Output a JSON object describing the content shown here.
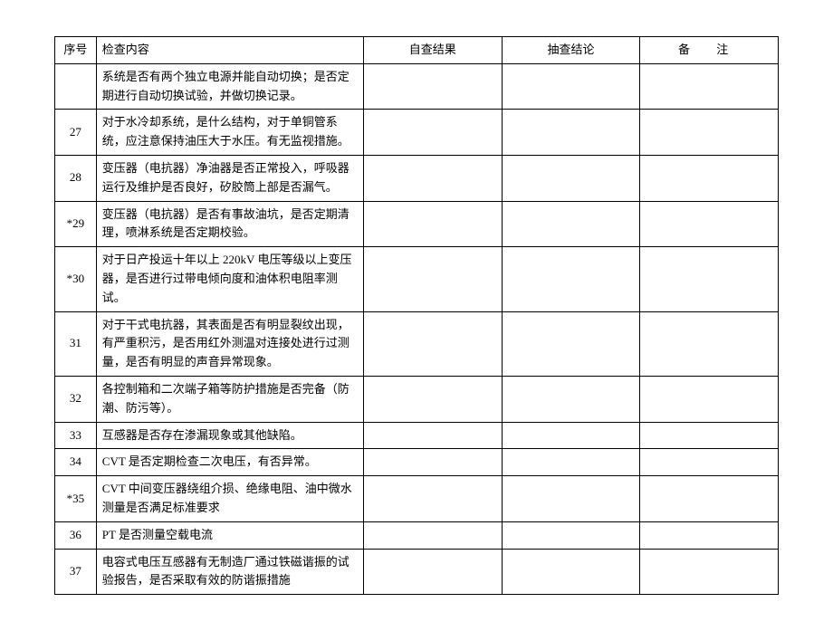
{
  "headers": {
    "seq": "序号",
    "content": "检查内容",
    "selfCheck": "自查结果",
    "spotCheck": "抽查结论",
    "remark": "备 注"
  },
  "rows": [
    {
      "seq": "",
      "content": "系统是否有两个独立电源并能自动切换；是否定期进行自动切换试验，并做切换记录。"
    },
    {
      "seq": "27",
      "content": "对于水冷却系统，是什么结构，对于单铜管系统，应注意保持油压大于水压。有无监视措施。"
    },
    {
      "seq": "28",
      "content": "变压器（电抗器）净油器是否正常投入，呼吸器运行及维护是否良好，矽胶筒上部是否漏气。"
    },
    {
      "seq": "*29",
      "content": "变压器（电抗器）是否有事故油坑，是否定期清理，喷淋系统是否定期校验。"
    },
    {
      "seq": "*30",
      "content": "对于日产投运十年以上 220kV 电压等级以上变压器，是否进行过带电倾向度和油体积电阻率测试。"
    },
    {
      "seq": "31",
      "content": "对于干式电抗器，其表面是否有明显裂纹出现，有严重积污，是否用红外测温对连接处进行过测量，是否有明显的声音异常现象。"
    },
    {
      "seq": "32",
      "content": "各控制箱和二次端子箱等防护措施是否完备（防潮、防污等）。"
    },
    {
      "seq": "33",
      "content": "互感器是否存在渗漏现象或其他缺陷。"
    },
    {
      "seq": "34",
      "content": "CVT 是否定期检查二次电压，有否异常。"
    },
    {
      "seq": "*35",
      "content": "CVT 中间变压器绕组介损、绝缘电阻、油中微水测量是否满足标准要求"
    },
    {
      "seq": "36",
      "content": "PT 是否测量空载电流"
    },
    {
      "seq": "37",
      "content": "电容式电压互感器有无制造厂通过铁磁谐振的试验报告，是否采取有效的防谐振措施"
    }
  ]
}
